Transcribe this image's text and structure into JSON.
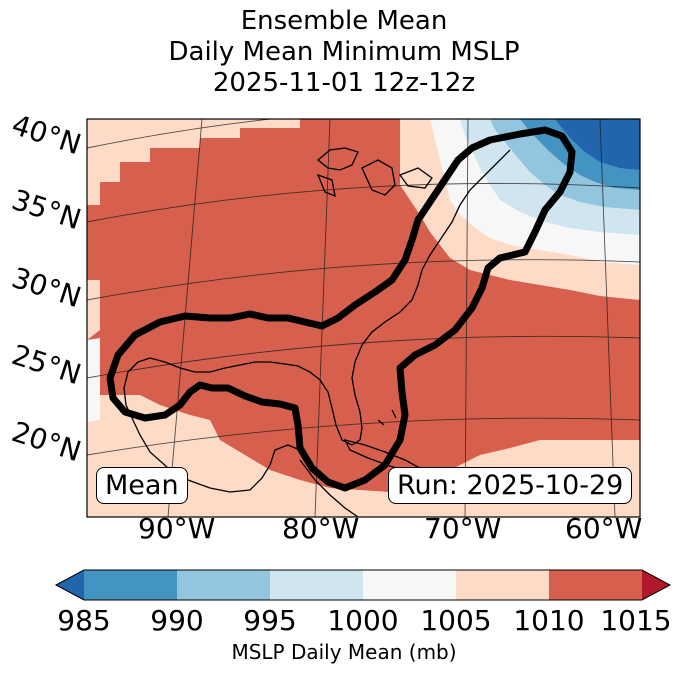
{
  "title": {
    "line1": "Ensemble Mean",
    "line2": "Daily Mean Minimum MSLP",
    "line3": "2025-11-01 12z-12z"
  },
  "map": {
    "region": "Eastern United States, Gulf of Mexico and western Atlantic",
    "field": "MSLP daily mean minimum (ensemble mean)",
    "contour": "thick black outline enclosing Gulf of Mexico, Florida and US East Coast",
    "lat_labels": [
      "40°N",
      "35°N",
      "30°N",
      "25°N",
      "20°N"
    ],
    "lon_labels": [
      "90°W",
      "80°W",
      "70°W",
      "60°W"
    ],
    "mean_label": "Mean",
    "run_label": "Run: 2025-10-29"
  },
  "colorbar": {
    "label": "MSLP Daily Mean (mb)",
    "ticks": [
      "985",
      "990",
      "995",
      "1000",
      "1005",
      "1010",
      "1015"
    ],
    "colors": [
      "#2166ac",
      "#4393c3",
      "#92c5de",
      "#d1e5f0",
      "#f7f7f7",
      "#fddbc7",
      "#d6604d",
      "#b2182b"
    ],
    "extend": "both"
  }
}
